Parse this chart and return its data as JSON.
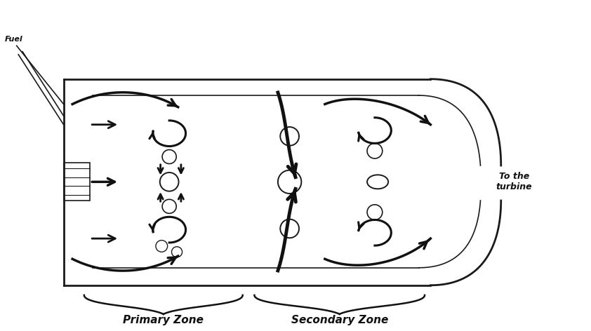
{
  "fig_width": 8.42,
  "fig_height": 4.72,
  "dpi": 100,
  "bg_color": "#ffffff",
  "line_color": "#1a1a1a",
  "arrow_color": "#111111",
  "text_color": "#111111",
  "primary_zone_label": "Primary Zone",
  "secondary_zone_label": "Secondary Zone",
  "fuel_label": "Fuel",
  "turbine_label": "To the\nturbine"
}
